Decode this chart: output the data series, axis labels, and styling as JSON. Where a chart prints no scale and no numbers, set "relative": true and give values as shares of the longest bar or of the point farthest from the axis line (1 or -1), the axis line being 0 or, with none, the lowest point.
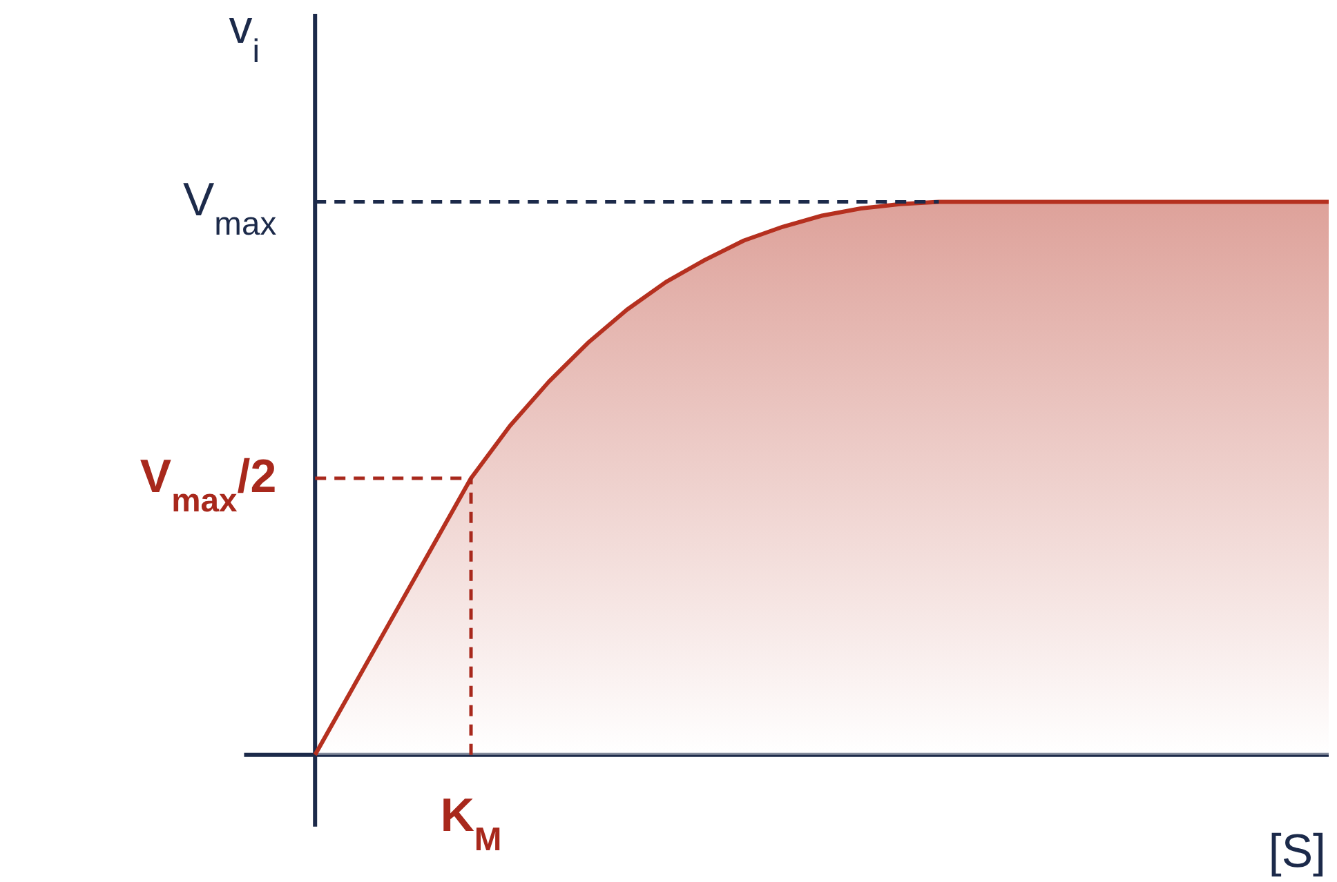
{
  "chart_data": {
    "type": "area",
    "relative": true,
    "xlabel": "[S]",
    "ylabel": "v$_{i}$",
    "categories": [
      null,
      null,
      null,
      null,
      null,
      null,
      null,
      null,
      null,
      null,
      null,
      null,
      null,
      null,
      null,
      null,
      null,
      null,
      null,
      null,
      null,
      null,
      null,
      null,
      null,
      null,
      null
    ],
    "series": [
      {
        "color": "#b5301f",
        "values": [
          0,
          0.125,
          0.25,
          0.375,
          0.5,
          0.595,
          0.675,
          0.745,
          0.805,
          0.855,
          0.895,
          0.93,
          0.955,
          0.975,
          0.988,
          0.996,
          1,
          1,
          1,
          1,
          1,
          1,
          1,
          1,
          1,
          1,
          1
        ]
      }
    ],
    "ref_lines": [
      {
        "axis": "y",
        "value": 1,
        "label": "V$_{max}$",
        "color": "#1c2a4a",
        "line_style": "dashed"
      },
      {
        "axis": "y",
        "value": 0.5,
        "label": "V$_{max}$/2",
        "color": "#a8281c",
        "line_style": "dashed"
      }
    ],
    "annotations": [
      {
        "text": "K$_{M}$",
        "y": 0.5
      }
    ],
    "grid": false
  }
}
